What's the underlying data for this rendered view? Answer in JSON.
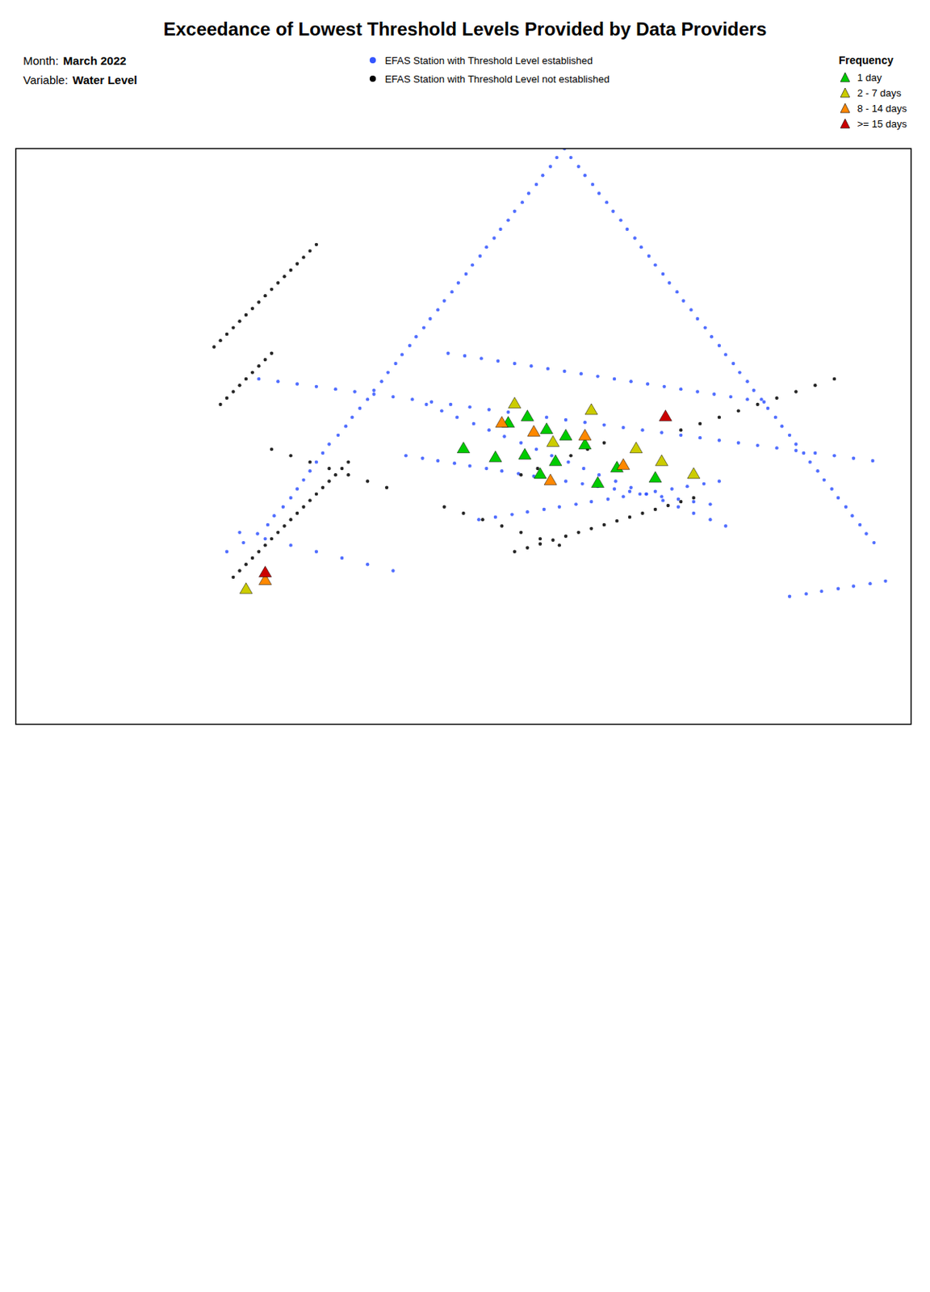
{
  "chart_data": {
    "type": "scatter",
    "title": "Exceedance of Lowest Threshold Levels Provided by Data Providers",
    "annotations": [
      {
        "label": "Month:",
        "value": "March 2022"
      },
      {
        "label": "Variable:",
        "value": "Water Level"
      }
    ],
    "legend": "top",
    "legend_title": "Frequency",
    "tick_labels": false,
    "grid": false,
    "xlim": [
      -25,
      45
    ],
    "ylim": [
      27,
      72
    ],
    "series": [
      {
        "name": "EFAS Station with Threshold Level established",
        "color": "#3355FF",
        "marker": "circle",
        "x": [
          -8.5,
          -7.2,
          -6.1,
          -5.3,
          -4.8,
          -4.1,
          -3.5,
          -3.0,
          -2.5,
          -2.0,
          -1.5,
          -1.0,
          -0.5,
          0.2,
          0.8,
          1.3,
          1.9,
          2.5,
          3.0,
          3.6,
          4.1,
          4.7,
          5.2,
          5.8,
          6.3,
          6.9,
          7.4,
          8.0,
          8.5,
          9.1,
          9.6,
          10.2,
          10.7,
          11.3,
          11.8,
          12.4,
          12.9,
          13.5,
          14.0,
          14.6,
          15.1,
          15.7,
          16.2,
          16.8,
          17.3,
          17.9,
          18.4,
          19.0,
          19.5,
          20.1,
          20.6,
          21.2,
          21.7,
          22.3,
          22.8,
          23.4,
          23.9,
          24.5,
          25.0,
          25.6,
          26.1,
          26.7,
          27.2,
          27.8,
          28.3,
          28.9,
          29.4,
          30.0,
          30.5,
          31.1,
          31.6,
          32.2,
          32.7,
          33.3,
          33.8,
          34.4,
          34.9,
          35.5,
          36.0,
          36.6,
          37.1,
          37.7,
          38.2,
          38.8,
          39.3,
          39.9,
          40.4,
          41.0,
          41.5,
          42.1,
          7.1,
          8.3,
          9.5,
          10.8,
          12.0,
          13.2,
          14.5,
          15.7,
          16.9,
          18.2,
          19.4,
          20.6,
          21.9,
          23.1,
          24.3,
          25.6,
          26.8,
          28.0,
          29.3,
          30.5,
          5.5,
          6.8,
          8.0,
          9.3,
          10.5,
          11.8,
          13.0,
          14.3,
          15.5,
          16.8,
          18.0,
          19.3,
          20.5,
          21.8,
          23.0,
          24.3,
          25.5,
          26.8,
          28.0,
          29.3,
          -6.0,
          -4.5,
          -3.0,
          -1.5,
          0.0,
          1.5,
          3.0,
          4.5,
          6.0,
          7.5,
          9.0,
          10.5,
          12.0,
          13.5,
          15.0,
          16.5,
          18.0,
          19.5,
          21.0,
          22.5,
          24.0,
          25.5,
          27.0,
          28.5,
          30.0,
          31.5,
          33.0,
          34.5,
          36.0,
          37.5,
          39.0,
          40.5,
          42.0,
          11.2,
          12.5,
          13.8,
          15.0,
          16.3,
          17.5,
          18.8,
          20.0,
          21.3,
          22.5,
          23.8,
          25.0,
          26.3,
          27.5,
          28.8,
          30.0,
          -7.5,
          -5.5,
          -3.5,
          -1.5,
          0.5,
          2.5,
          4.5,
          35.5,
          36.8,
          38.0,
          39.3,
          40.5,
          41.8,
          43.0,
          8.8,
          10.1,
          11.4,
          12.7,
          14.0,
          15.3,
          16.6,
          17.9,
          19.2,
          20.5,
          21.8,
          23.1,
          24.4,
          25.7,
          27.0,
          28.3,
          29.6,
          30.9,
          32.2,
          33.5
        ],
        "y": [
          40.5,
          41.2,
          41.9,
          42.6,
          43.3,
          44.0,
          44.7,
          45.4,
          46.1,
          46.8,
          47.5,
          48.2,
          48.9,
          49.6,
          50.3,
          51.0,
          51.7,
          52.4,
          53.1,
          53.8,
          54.5,
          55.2,
          55.9,
          56.6,
          57.3,
          58.0,
          58.7,
          59.4,
          60.1,
          60.8,
          61.5,
          62.2,
          62.9,
          63.6,
          64.3,
          65.0,
          65.7,
          66.4,
          67.1,
          67.8,
          68.5,
          69.2,
          69.9,
          70.6,
          71.3,
          72.0,
          71.3,
          70.6,
          69.9,
          69.2,
          68.5,
          67.8,
          67.1,
          66.4,
          65.7,
          65.0,
          64.3,
          63.6,
          62.9,
          62.2,
          61.5,
          60.8,
          60.1,
          59.4,
          58.7,
          58.0,
          57.3,
          56.6,
          55.9,
          55.2,
          54.5,
          53.8,
          53.1,
          52.4,
          51.7,
          51.0,
          50.3,
          49.6,
          48.9,
          48.2,
          47.5,
          46.8,
          46.1,
          45.4,
          44.7,
          44.0,
          43.3,
          42.6,
          41.9,
          41.2,
          52.0,
          51.5,
          51.0,
          50.5,
          50.0,
          49.5,
          49.0,
          48.5,
          48.0,
          47.5,
          47.0,
          46.5,
          46.0,
          45.5,
          45.0,
          44.5,
          44.0,
          43.5,
          43.0,
          42.5,
          48.0,
          47.8,
          47.6,
          47.4,
          47.2,
          47.0,
          46.8,
          46.6,
          46.4,
          46.2,
          46.0,
          45.8,
          45.6,
          45.4,
          45.2,
          45.0,
          44.8,
          44.6,
          44.4,
          44.2,
          54.0,
          53.8,
          53.6,
          53.4,
          53.2,
          53.0,
          52.8,
          52.6,
          52.4,
          52.2,
          52.0,
          51.8,
          51.6,
          51.4,
          51.2,
          51.0,
          50.8,
          50.6,
          50.4,
          50.2,
          50.0,
          49.8,
          49.6,
          49.4,
          49.2,
          49.0,
          48.8,
          48.6,
          48.4,
          48.2,
          48.0,
          47.8,
          47.6,
          43.0,
          43.2,
          43.4,
          43.6,
          43.8,
          44.0,
          44.2,
          44.4,
          44.6,
          44.8,
          45.0,
          45.2,
          45.4,
          45.6,
          45.8,
          46.0,
          42.0,
          41.5,
          41.0,
          40.5,
          40.0,
          39.5,
          39.0,
          37.0,
          37.2,
          37.4,
          37.6,
          37.8,
          38.0,
          38.2,
          56.0,
          55.8,
          55.6,
          55.4,
          55.2,
          55.0,
          54.8,
          54.6,
          54.4,
          54.2,
          54.0,
          53.8,
          53.6,
          53.4,
          53.2,
          53.0,
          52.8,
          52.6,
          52.4,
          52.2
        ]
      },
      {
        "name": "EFAS Station with Threshold Level not established",
        "color": "#000000",
        "marker": "circle",
        "x": [
          -8.0,
          -7.5,
          -7.0,
          -6.5,
          -6.0,
          -5.5,
          -5.0,
          -4.5,
          -4.0,
          -3.5,
          -3.0,
          -2.5,
          -2.0,
          -1.5,
          -1.0,
          -0.5,
          0.0,
          0.5,
          1.0,
          -9.0,
          -8.5,
          -8.0,
          -7.5,
          -7.0,
          -6.5,
          -6.0,
          -5.5,
          -5.0,
          -9.5,
          -9.0,
          -8.5,
          -8.0,
          -7.5,
          -7.0,
          -6.5,
          -6.0,
          -5.5,
          -5.0,
          -4.5,
          -4.0,
          -3.5,
          -3.0,
          -2.5,
          -2.0,
          -1.5,
          14.0,
          15.0,
          16.0,
          17.0,
          18.0,
          19.0,
          20.0,
          21.0,
          22.0,
          23.0,
          24.0,
          25.0,
          26.0,
          27.0,
          28.0,
          27.0,
          28.5,
          30.0,
          31.5,
          33.0,
          34.5,
          36.0,
          37.5,
          39.0,
          -5.0,
          -3.5,
          -2.0,
          -0.5,
          1.0,
          2.5,
          4.0,
          14.5,
          15.8,
          17.1,
          18.4,
          19.7,
          21.0,
          8.5,
          10.0,
          11.5,
          13.0,
          14.5,
          16.0,
          17.5
        ],
        "y": [
          38.5,
          39.0,
          39.5,
          40.0,
          40.5,
          41.0,
          41.5,
          42.0,
          42.5,
          43.0,
          43.5,
          44.0,
          44.5,
          45.0,
          45.5,
          46.0,
          46.5,
          47.0,
          47.5,
          52.0,
          52.5,
          53.0,
          53.5,
          54.0,
          54.5,
          55.0,
          55.5,
          56.0,
          56.5,
          57.0,
          57.5,
          58.0,
          58.5,
          59.0,
          59.5,
          60.0,
          60.5,
          61.0,
          61.5,
          62.0,
          62.5,
          63.0,
          63.5,
          64.0,
          64.5,
          40.5,
          40.8,
          41.1,
          41.4,
          41.7,
          42.0,
          42.3,
          42.6,
          42.9,
          43.2,
          43.5,
          43.8,
          44.1,
          44.4,
          44.7,
          50.0,
          50.5,
          51.0,
          51.5,
          52.0,
          52.5,
          53.0,
          53.5,
          54.0,
          48.5,
          48.0,
          47.5,
          47.0,
          46.5,
          46.0,
          45.5,
          46.5,
          47.0,
          47.5,
          48.0,
          48.5,
          49.0,
          44.0,
          43.5,
          43.0,
          42.5,
          42.0,
          41.5,
          41.0
        ]
      },
      {
        "name": "1 day",
        "color": "#00CC00",
        "marker": "triangle",
        "x": [
          13.5,
          15.0,
          16.5,
          18.0,
          10.0,
          14.8,
          17.2,
          19.5,
          22.0,
          16.0,
          20.5,
          25.0,
          12.5
        ],
        "y": [
          50.5,
          51.0,
          50.0,
          49.5,
          48.5,
          48.0,
          47.5,
          48.8,
          47.0,
          46.5,
          45.8,
          46.2,
          47.8
        ]
      },
      {
        "name": "2 - 7 days",
        "color": "#CCCC00",
        "marker": "triangle",
        "x": [
          17.0,
          20.0,
          23.5,
          -7.0,
          25.5,
          14.0,
          28.0
        ],
        "y": [
          49.0,
          51.5,
          48.5,
          37.5,
          47.5,
          52.0,
          46.5
        ]
      },
      {
        "name": "8 - 14 days",
        "color": "#FF8800",
        "marker": "triangle",
        "x": [
          15.5,
          13.0,
          -5.5,
          19.5,
          22.5,
          16.8
        ],
        "y": [
          49.8,
          50.5,
          38.2,
          49.5,
          47.2,
          46.0
        ]
      },
      {
        "name": ">= 15 days",
        "color": "#CC0000",
        "marker": "triangle",
        "x": [
          25.8,
          -5.5
        ],
        "y": [
          51.0,
          38.8
        ]
      }
    ]
  }
}
